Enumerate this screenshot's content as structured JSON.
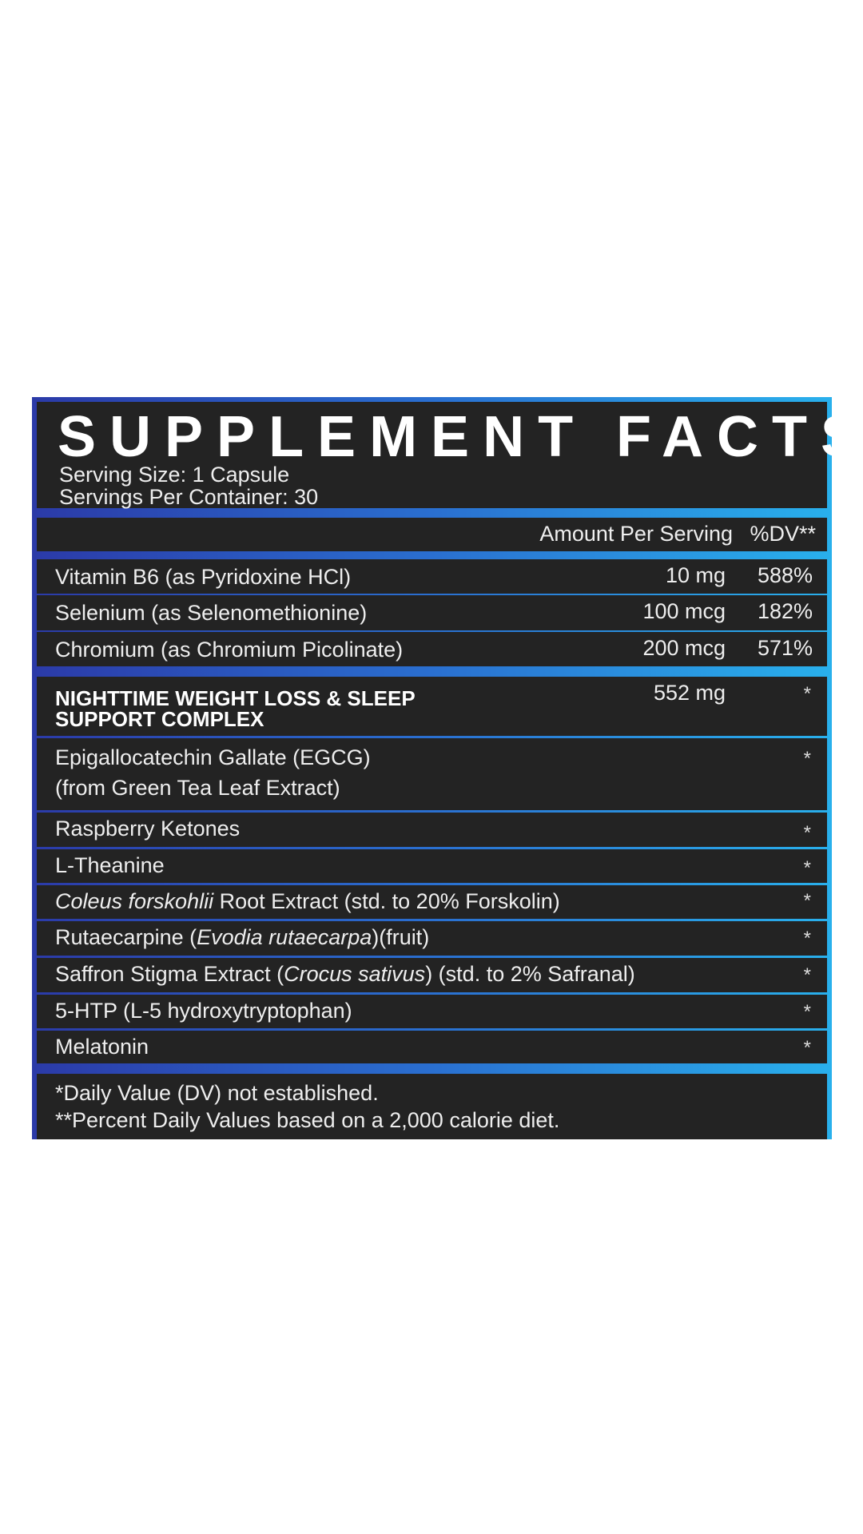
{
  "title": "SUPPLEMENT FACTS",
  "serving_size": "Serving Size: 1 Capsule",
  "servings_per_container": "Servings Per Container: 30",
  "header": {
    "amount": "Amount Per Serving",
    "dv": "%DV**"
  },
  "vitamins": [
    {
      "name": "Vitamin B6 (as Pyridoxine HCl)",
      "amount": "10 mg",
      "dv": "588%"
    },
    {
      "name": "Selenium (as Selenomethionine)",
      "amount": "100 mcg",
      "dv": "182%"
    },
    {
      "name": "Chromium (as Chromium Picolinate)",
      "amount": "200 mcg",
      "dv": "571%"
    }
  ],
  "complex": {
    "line1": "NIGHTTIME WEIGHT LOSS & SLEEP",
    "line2": "SUPPORT COMPLEX",
    "amount": "552 mg",
    "dv": "*"
  },
  "ingredients": [
    {
      "line1": "Epigallocatechin Gallate (EGCG)",
      "line2": "(from Green Tea Leaf Extract)",
      "dv": "*"
    },
    {
      "name": "Raspberry Ketones",
      "dv": "*"
    },
    {
      "name": "L-Theanine",
      "dv": "*"
    },
    {
      "italic": "Coleus forskohlii",
      "rest": " Root Extract (std. to 20% Forskolin)",
      "dv": "*"
    },
    {
      "pre": "Rutaecarpine (",
      "italic": "Evodia rutaecarpa",
      "rest": ")(fruit)",
      "dv": "*"
    },
    {
      "pre": "Saffron Stigma Extract (",
      "italic": "Crocus sativus",
      "rest": ") (std. to 2% Safranal)",
      "dv": "*"
    },
    {
      "name": "5-HTP (L-5 hydroxytryptophan)",
      "dv": "*"
    },
    {
      "name": "Melatonin",
      "dv": "*"
    }
  ],
  "footnotes": [
    "*Daily Value (DV) not established.",
    "**Percent Daily Values based on a 2,000 calorie diet."
  ],
  "colors": {
    "panel": "#232323",
    "band_left": "#2b3aa8",
    "band_right": "#29b0ec",
    "text": "#eeeeee"
  }
}
